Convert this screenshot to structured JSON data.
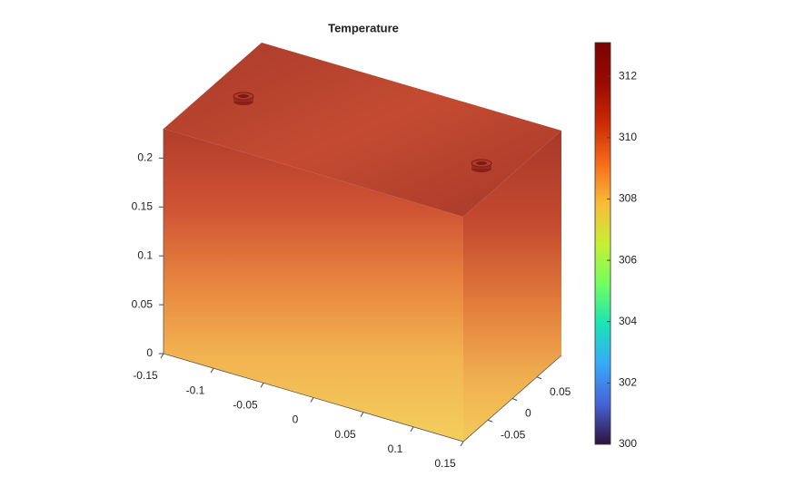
{
  "chart_data": {
    "type": "surface3d",
    "title": "Temperature",
    "xlim": [
      -0.15,
      0.15
    ],
    "xticks": [
      -0.15,
      -0.1,
      -0.05,
      0,
      0.05,
      0.1,
      0.15
    ],
    "ylim": [
      -0.1,
      0.1
    ],
    "yticks": [
      -0.05,
      0,
      0.05
    ],
    "zlim": [
      0,
      0.23
    ],
    "zticks": [
      0,
      0.05,
      0.1,
      0.15,
      0.2
    ],
    "colorbar": {
      "clim": [
        300,
        313.1
      ],
      "ticks": [
        300,
        302,
        304,
        306,
        308,
        310,
        312
      ],
      "colormap": "turbo"
    }
  }
}
